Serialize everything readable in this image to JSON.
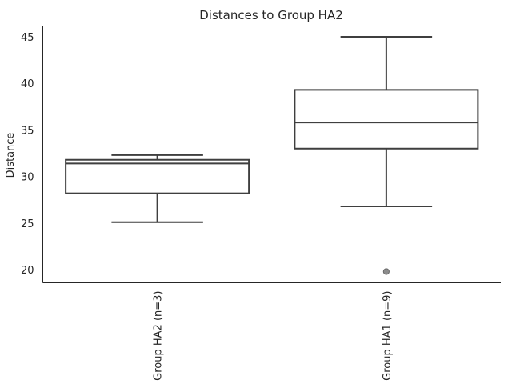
{
  "chart_data": {
    "type": "box",
    "title": "Distances to Group HA2",
    "xlabel": "",
    "ylabel": "Distance",
    "ylim": [
      18.6,
      46.2
    ],
    "yticks": [
      20,
      25,
      30,
      35,
      40,
      45
    ],
    "grid": false,
    "categories": [
      "Group HA2 (n=3)",
      "Group HA1 (n=9)"
    ],
    "boxes": [
      {
        "label": "Group HA2 (n=3)",
        "whisker_low": 25.1,
        "q1": 28.2,
        "median": 31.4,
        "q3": 31.8,
        "whisker_high": 32.3,
        "outliers": []
      },
      {
        "label": "Group HA1 (n=9)",
        "whisker_low": 26.8,
        "q1": 33.0,
        "median": 35.8,
        "q3": 39.3,
        "whisker_high": 45.0,
        "outliers": [
          19.8
        ]
      }
    ]
  }
}
